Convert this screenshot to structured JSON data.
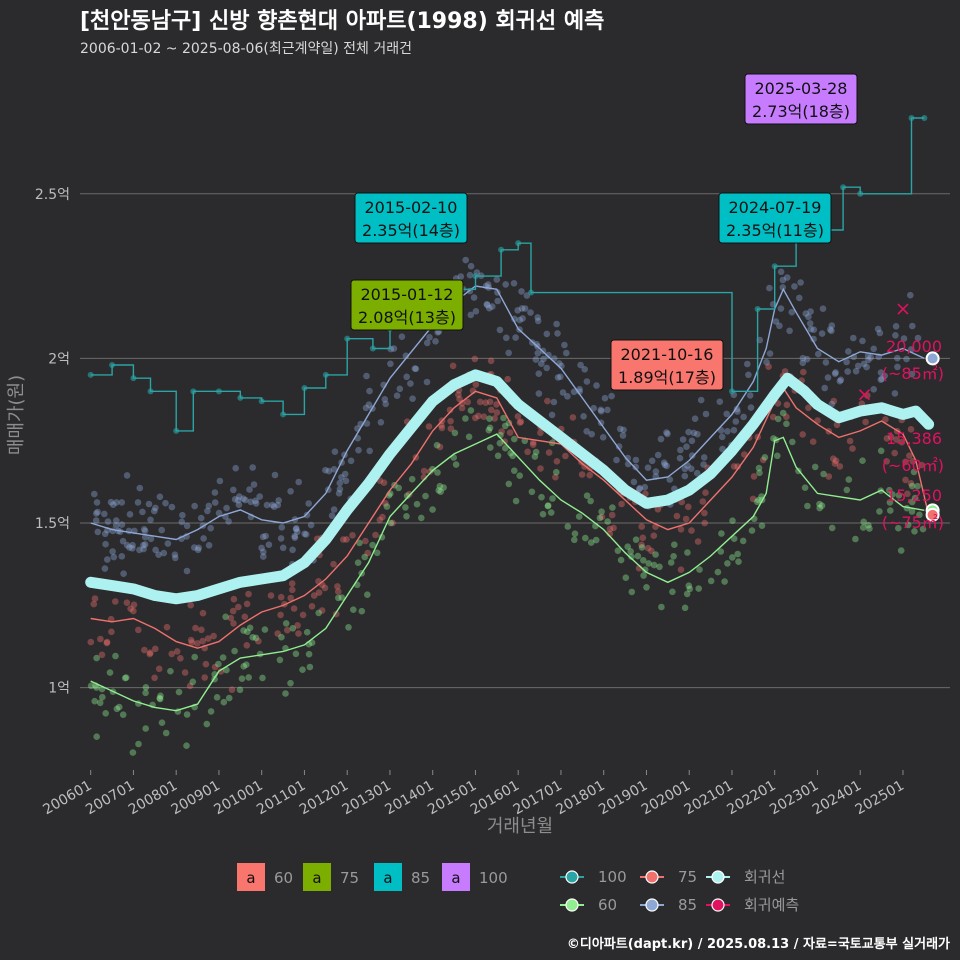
{
  "title": "[천안동남구] 신방 향촌현대 아파트(1998) 회귀선 예측",
  "subtitle": "2006-01-02 ~ 2025-08-06(최근계약일) 전체 거래건",
  "credit": "©디아파트(dapt.kr) / 2025.08.13 / 자료=국토교통부 실거래가",
  "colors": {
    "background": "#2b2b2d",
    "area60": "#90ee90",
    "area75": "#f0716d",
    "area85": "#8ea8d6",
    "area100": "#2aa4a4",
    "regression": "#aef1f1",
    "forecast": "#e0115f",
    "label60": "#f8766d",
    "label75": "#7cae00",
    "label85": "#00bfc4",
    "label100": "#c77cff"
  },
  "chart_data": {
    "type": "line",
    "xlabel": "거래년월",
    "ylabel": "매매가(원)",
    "x_ticks": [
      "200601",
      "200701",
      "200801",
      "200901",
      "201001",
      "201101",
      "201201",
      "201301",
      "201401",
      "201501",
      "201601",
      "201701",
      "201801",
      "201901",
      "202001",
      "202101",
      "202201",
      "202301",
      "202401",
      "202501"
    ],
    "y_ticks": [
      {
        "value": 10000,
        "label": "1억"
      },
      {
        "value": 15000,
        "label": "1.5억"
      },
      {
        "value": 20000,
        "label": "2억"
      },
      {
        "value": 25000,
        "label": "2.5억"
      }
    ],
    "ylim": [
      7500,
      28000
    ],
    "xlim": [
      2005.75,
      2026.1
    ],
    "series": [
      {
        "name": "60",
        "type": "trend",
        "points": [
          [
            2006.0,
            10200
          ],
          [
            2006.5,
            9900
          ],
          [
            2007.0,
            9600
          ],
          [
            2007.5,
            9400
          ],
          [
            2008.0,
            9300
          ],
          [
            2008.5,
            9500
          ],
          [
            2009.0,
            10500
          ],
          [
            2009.5,
            10900
          ],
          [
            2010.0,
            11000
          ],
          [
            2010.5,
            11100
          ],
          [
            2011.0,
            11300
          ],
          [
            2011.5,
            11800
          ],
          [
            2012.0,
            12800
          ],
          [
            2012.5,
            13800
          ],
          [
            2013.0,
            15200
          ],
          [
            2013.5,
            15900
          ],
          [
            2014.0,
            16600
          ],
          [
            2014.5,
            17100
          ],
          [
            2015.0,
            17400
          ],
          [
            2015.5,
            17700
          ],
          [
            2016.0,
            17000
          ],
          [
            2016.5,
            16300
          ],
          [
            2017.0,
            15700
          ],
          [
            2017.5,
            15300
          ],
          [
            2018.0,
            14800
          ],
          [
            2018.5,
            14100
          ],
          [
            2019.0,
            13500
          ],
          [
            2019.5,
            13200
          ],
          [
            2020.0,
            13500
          ],
          [
            2020.5,
            14000
          ],
          [
            2021.0,
            14600
          ],
          [
            2021.5,
            15200
          ],
          [
            2021.8,
            15900
          ],
          [
            2022.0,
            17500
          ],
          [
            2022.2,
            17600
          ],
          [
            2022.5,
            16700
          ],
          [
            2023.0,
            15900
          ],
          [
            2023.5,
            15800
          ],
          [
            2024.0,
            15700
          ],
          [
            2024.5,
            16000
          ],
          [
            2024.8,
            15700
          ],
          [
            2025.0,
            15500
          ],
          [
            2025.5,
            15386
          ]
        ]
      },
      {
        "name": "75",
        "type": "trend",
        "points": [
          [
            2006.0,
            12100
          ],
          [
            2006.5,
            12000
          ],
          [
            2007.0,
            12100
          ],
          [
            2007.5,
            11800
          ],
          [
            2008.0,
            11400
          ],
          [
            2008.5,
            11200
          ],
          [
            2009.0,
            11400
          ],
          [
            2009.5,
            11900
          ],
          [
            2010.0,
            12300
          ],
          [
            2010.5,
            12500
          ],
          [
            2011.0,
            12800
          ],
          [
            2011.5,
            13300
          ],
          [
            2012.0,
            14000
          ],
          [
            2012.5,
            15000
          ],
          [
            2013.0,
            16000
          ],
          [
            2013.5,
            16800
          ],
          [
            2014.0,
            17800
          ],
          [
            2014.5,
            18500
          ],
          [
            2015.0,
            19000
          ],
          [
            2015.5,
            18800
          ],
          [
            2016.0,
            17600
          ],
          [
            2016.5,
            17500
          ],
          [
            2017.0,
            17400
          ],
          [
            2017.5,
            16800
          ],
          [
            2018.0,
            16300
          ],
          [
            2018.5,
            15700
          ],
          [
            2019.0,
            15100
          ],
          [
            2019.5,
            14800
          ],
          [
            2020.0,
            15000
          ],
          [
            2020.5,
            15700
          ],
          [
            2021.0,
            16400
          ],
          [
            2021.5,
            17300
          ],
          [
            2022.0,
            18700
          ],
          [
            2022.2,
            19100
          ],
          [
            2022.5,
            18500
          ],
          [
            2023.0,
            18000
          ],
          [
            2023.5,
            17600
          ],
          [
            2024.0,
            17800
          ],
          [
            2024.5,
            18100
          ],
          [
            2025.0,
            17700
          ],
          [
            2025.3,
            16900
          ],
          [
            2025.6,
            15250
          ]
        ]
      },
      {
        "name": "85",
        "type": "trend",
        "points": [
          [
            2006.0,
            15000
          ],
          [
            2006.5,
            14800
          ],
          [
            2007.0,
            14700
          ],
          [
            2007.5,
            14600
          ],
          [
            2008.0,
            14500
          ],
          [
            2008.5,
            14800
          ],
          [
            2009.0,
            15200
          ],
          [
            2009.5,
            15400
          ],
          [
            2010.0,
            15100
          ],
          [
            2010.5,
            15000
          ],
          [
            2011.0,
            15200
          ],
          [
            2011.5,
            15900
          ],
          [
            2012.0,
            17200
          ],
          [
            2012.5,
            18300
          ],
          [
            2013.0,
            19400
          ],
          [
            2013.5,
            20200
          ],
          [
            2014.0,
            21000
          ],
          [
            2014.5,
            21700
          ],
          [
            2015.0,
            22200
          ],
          [
            2015.5,
            22100
          ],
          [
            2016.0,
            20900
          ],
          [
            2016.5,
            20300
          ],
          [
            2017.0,
            19700
          ],
          [
            2017.5,
            18800
          ],
          [
            2018.0,
            17900
          ],
          [
            2018.5,
            17000
          ],
          [
            2019.0,
            16300
          ],
          [
            2019.5,
            16400
          ],
          [
            2020.0,
            16900
          ],
          [
            2020.5,
            17600
          ],
          [
            2021.0,
            18300
          ],
          [
            2021.5,
            19300
          ],
          [
            2021.8,
            20300
          ],
          [
            2022.0,
            21500
          ],
          [
            2022.2,
            22100
          ],
          [
            2022.5,
            21400
          ],
          [
            2023.0,
            20300
          ],
          [
            2023.5,
            19900
          ],
          [
            2024.0,
            20200
          ],
          [
            2024.5,
            20100
          ],
          [
            2025.0,
            20300
          ],
          [
            2025.5,
            20000
          ]
        ]
      },
      {
        "name": "100",
        "type": "step",
        "points": [
          [
            2006.0,
            19500
          ],
          [
            2006.5,
            19800
          ],
          [
            2007.0,
            19400
          ],
          [
            2007.4,
            19000
          ],
          [
            2008.0,
            17800
          ],
          [
            2008.4,
            19000
          ],
          [
            2009.0,
            19000
          ],
          [
            2009.5,
            18800
          ],
          [
            2010.0,
            18700
          ],
          [
            2010.5,
            18300
          ],
          [
            2011.0,
            19100
          ],
          [
            2011.5,
            19500
          ],
          [
            2012.0,
            20600
          ],
          [
            2012.6,
            20300
          ],
          [
            2013.0,
            20900
          ],
          [
            2013.6,
            21800
          ],
          [
            2014.0,
            21700
          ],
          [
            2014.6,
            22100
          ],
          [
            2015.0,
            22500
          ],
          [
            2015.6,
            23300
          ],
          [
            2016.0,
            23500
          ],
          [
            2016.3,
            22000
          ],
          [
            2021.0,
            19000
          ],
          [
            2021.6,
            21500
          ],
          [
            2022.0,
            22800
          ],
          [
            2022.5,
            24000
          ],
          [
            2023.0,
            23900
          ],
          [
            2023.6,
            25200
          ],
          [
            2024.0,
            25000
          ],
          [
            2025.2,
            27300
          ],
          [
            2025.5,
            27300
          ]
        ]
      },
      {
        "name": "회귀선",
        "type": "regression",
        "points": [
          [
            2006.0,
            13200
          ],
          [
            2006.5,
            13100
          ],
          [
            2007.0,
            13000
          ],
          [
            2007.5,
            12800
          ],
          [
            2008.0,
            12700
          ],
          [
            2008.5,
            12800
          ],
          [
            2009.0,
            13000
          ],
          [
            2009.5,
            13200
          ],
          [
            2010.0,
            13300
          ],
          [
            2010.5,
            13400
          ],
          [
            2011.0,
            13800
          ],
          [
            2011.5,
            14500
          ],
          [
            2012.0,
            15400
          ],
          [
            2012.5,
            16200
          ],
          [
            2013.0,
            17100
          ],
          [
            2013.5,
            17900
          ],
          [
            2014.0,
            18700
          ],
          [
            2014.5,
            19200
          ],
          [
            2015.0,
            19500
          ],
          [
            2015.5,
            19300
          ],
          [
            2016.0,
            18600
          ],
          [
            2016.5,
            18100
          ],
          [
            2017.0,
            17600
          ],
          [
            2017.5,
            17100
          ],
          [
            2018.0,
            16600
          ],
          [
            2018.5,
            16000
          ],
          [
            2019.0,
            15600
          ],
          [
            2019.5,
            15700
          ],
          [
            2020.0,
            16000
          ],
          [
            2020.5,
            16500
          ],
          [
            2021.0,
            17200
          ],
          [
            2021.5,
            18000
          ],
          [
            2022.0,
            18900
          ],
          [
            2022.3,
            19400
          ],
          [
            2022.7,
            19000
          ],
          [
            2023.0,
            18600
          ],
          [
            2023.5,
            18200
          ],
          [
            2024.0,
            18400
          ],
          [
            2024.5,
            18500
          ],
          [
            2025.0,
            18300
          ],
          [
            2025.3,
            18400
          ],
          [
            2025.6,
            18000
          ]
        ]
      }
    ],
    "annotations": [
      {
        "date": "2015-02-10",
        "value": "2.35억(14층)",
        "area": "85",
        "x": 2015.1,
        "y": 23500
      },
      {
        "date": "2015-01-12",
        "value": "2.08억(13층)",
        "area": "75",
        "x": 2015.0,
        "y": 20800
      },
      {
        "date": "2021-10-16",
        "value": "1.89억(17층)",
        "area": "60",
        "x": 2021.8,
        "y": 18900
      },
      {
        "date": "2024-07-19",
        "value": "2.35억(11층)",
        "area": "85",
        "x": 2024.55,
        "y": 23500
      },
      {
        "date": "2025-03-28",
        "value": "2.73억(18층)",
        "area": "100",
        "x": 2025.25,
        "y": 27300
      }
    ],
    "endpoint_labels": [
      {
        "value": "20,000",
        "area": "(~85㎡)",
        "y": 20000
      },
      {
        "value": "15,386",
        "area": "(~60㎡)",
        "y": 15386
      },
      {
        "value": "15,250",
        "area": "(~75㎡)",
        "y": 15250
      }
    ],
    "legend": {
      "label_key": [
        {
          "name": "60",
          "glyph": "a"
        },
        {
          "name": "75",
          "glyph": "a"
        },
        {
          "name": "85",
          "glyph": "a"
        },
        {
          "name": "100",
          "glyph": "a"
        }
      ],
      "line_key": [
        "100",
        "75",
        "회귀선",
        "60",
        "85",
        "회귀예측"
      ]
    }
  }
}
